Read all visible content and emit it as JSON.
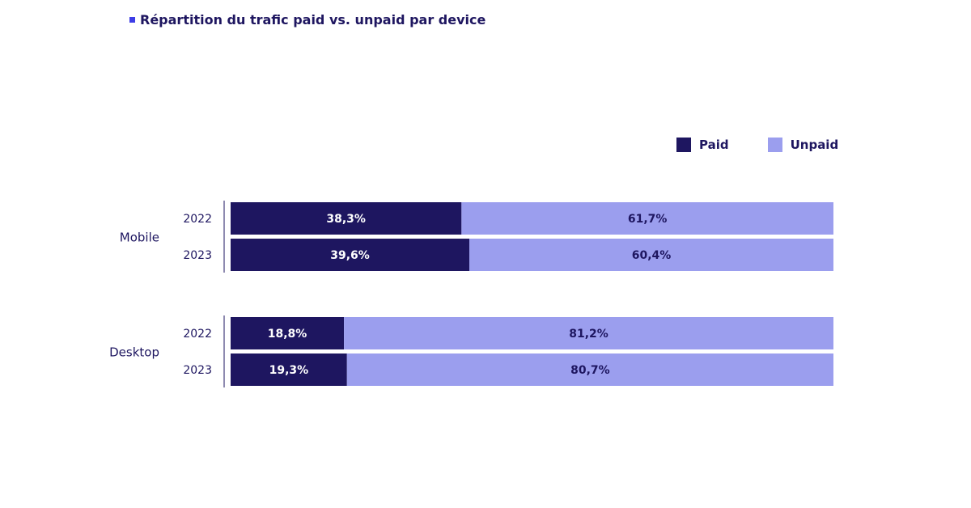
{
  "title": "Répartition du trafic paid vs. unpaid par device",
  "legend": {
    "paid_label": "Paid",
    "unpaid_label": "Unpaid"
  },
  "colors": {
    "paid": "#1e1660",
    "unpaid": "#9b9eee",
    "text_dark": "#1e1660",
    "accent": "#3d3de6"
  },
  "chart_data": {
    "type": "bar",
    "orientation": "horizontal",
    "stacked": true,
    "title": "Répartition du trafic paid vs. unpaid par device",
    "groups": [
      {
        "name": "Mobile",
        "rows": [
          {
            "year": "2022",
            "paid": 38.3,
            "unpaid": 61.7,
            "paid_label": "38,3%",
            "unpaid_label": "61,7%"
          },
          {
            "year": "2023",
            "paid": 39.6,
            "unpaid": 60.4,
            "paid_label": "39,6%",
            "unpaid_label": "60,4%"
          }
        ]
      },
      {
        "name": "Desktop",
        "rows": [
          {
            "year": "2022",
            "paid": 18.8,
            "unpaid": 81.2,
            "paid_label": "18,8%",
            "unpaid_label": "81,2%"
          },
          {
            "year": "2023",
            "paid": 19.3,
            "unpaid": 80.7,
            "paid_label": "19,3%",
            "unpaid_label": "80,7%"
          }
        ]
      }
    ],
    "series": [
      {
        "name": "Paid"
      },
      {
        "name": "Unpaid"
      }
    ],
    "xlim": [
      0,
      100
    ],
    "grid": false,
    "legend_position": "top-right"
  }
}
